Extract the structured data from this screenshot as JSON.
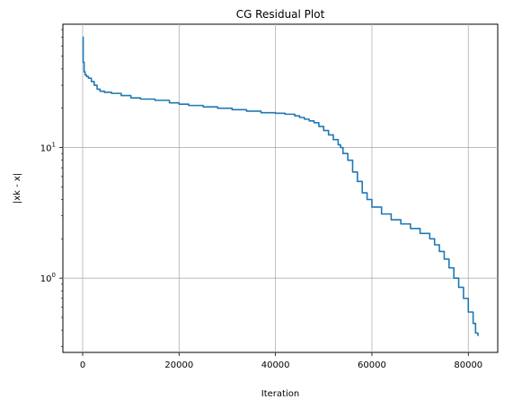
{
  "chart_data": {
    "type": "line",
    "title": "CG Residual Plot",
    "xlabel": "Iteration",
    "ylabel": "|xk - x|",
    "x_scale": "linear",
    "y_scale": "log",
    "xlim": [
      -4100,
      86100
    ],
    "ylim": [
      0.27,
      88
    ],
    "grid": true,
    "x_ticks": [
      0,
      20000,
      40000,
      60000,
      80000
    ],
    "x_tick_labels": [
      "0",
      "20000",
      "40000",
      "60000",
      "80000"
    ],
    "y_ticks": [
      1,
      10
    ],
    "y_tick_labels": [
      "10^0",
      "10^1"
    ],
    "series": [
      {
        "color": "#1f77b4",
        "x": [
          0,
          100,
          300,
          500,
          800,
          1200,
          1800,
          2400,
          3000,
          3600,
          4500,
          6000,
          8000,
          10000,
          12000,
          15000,
          18000,
          20000,
          22000,
          25000,
          28000,
          31000,
          34000,
          37000,
          40000,
          42000,
          44000,
          45000,
          46000,
          47000,
          48000,
          49000,
          50000,
          51000,
          52000,
          53000,
          53500,
          54000,
          55000,
          56000,
          57000,
          58000,
          59000,
          60000,
          62000,
          64000,
          66000,
          68000,
          70000,
          72000,
          73000,
          74000,
          75000,
          76000,
          77000,
          78000,
          79000,
          80000,
          81000,
          81500,
          82000
        ],
        "y": [
          70,
          45,
          38,
          36,
          35,
          34,
          32,
          30,
          28,
          27,
          26.5,
          26,
          25,
          24,
          23.5,
          23,
          22,
          21.5,
          21,
          20.5,
          20,
          19.5,
          19,
          18.5,
          18.3,
          18,
          17.5,
          17,
          16.5,
          16,
          15.5,
          14.5,
          13.5,
          12.5,
          11.5,
          10.5,
          10,
          9,
          8,
          6.5,
          5.5,
          4.5,
          4,
          3.5,
          3.1,
          2.8,
          2.6,
          2.4,
          2.2,
          2.0,
          1.8,
          1.6,
          1.4,
          1.2,
          1.0,
          0.85,
          0.7,
          0.55,
          0.45,
          0.38,
          0.36
        ]
      }
    ]
  }
}
